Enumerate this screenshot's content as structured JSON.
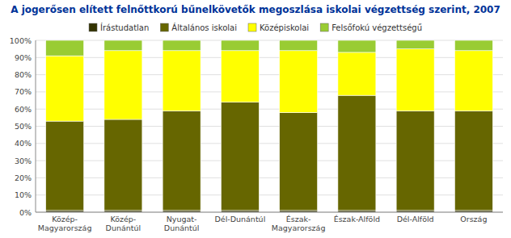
{
  "chart_data": {
    "type": "bar",
    "stacked": true,
    "title": "A jogerősen elített felnőttkorú bűnelkövetők megoszlása iskolai végzettség szerint, 2007",
    "categories": [
      "Közép-\nMagyarország",
      "Közép-\nDunántúl",
      "Nyugat-\nDunántúl",
      "Dél-Dunántúl",
      "Észak-\nMagyarország",
      "Észak-Alföld",
      "Dél-Alföld",
      "Ország"
    ],
    "series": [
      {
        "name": "Írástudatlan",
        "color": "#333300",
        "values": [
          1,
          1,
          1,
          1,
          1,
          1,
          1,
          1
        ]
      },
      {
        "name": "Általános iskolai",
        "color": "#666600",
        "values": [
          52,
          53,
          58,
          63,
          57,
          67,
          58,
          58
        ]
      },
      {
        "name": "Középiskolai",
        "color": "#ffff00",
        "values": [
          38,
          40,
          35,
          30,
          36,
          25,
          36,
          35
        ]
      },
      {
        "name": "Felsőfokú végzettségű",
        "color": "#99cc33",
        "values": [
          9,
          6,
          6,
          6,
          6,
          7,
          5,
          6
        ]
      }
    ],
    "ylim": [
      0,
      100
    ],
    "yticks": [
      {
        "value": 0,
        "label": "0%"
      },
      {
        "value": 10,
        "label": "10%"
      },
      {
        "value": 20,
        "label": "20%"
      },
      {
        "value": 30,
        "label": "30%"
      },
      {
        "value": 40,
        "label": "40%"
      },
      {
        "value": 50,
        "label": "50%"
      },
      {
        "value": 60,
        "label": "60%"
      },
      {
        "value": 70,
        "label": "70%"
      },
      {
        "value": 80,
        "label": "80%"
      },
      {
        "value": 90,
        "label": "90%"
      },
      {
        "value": 100,
        "label": "100%"
      }
    ],
    "grid": true,
    "legend": "top"
  }
}
